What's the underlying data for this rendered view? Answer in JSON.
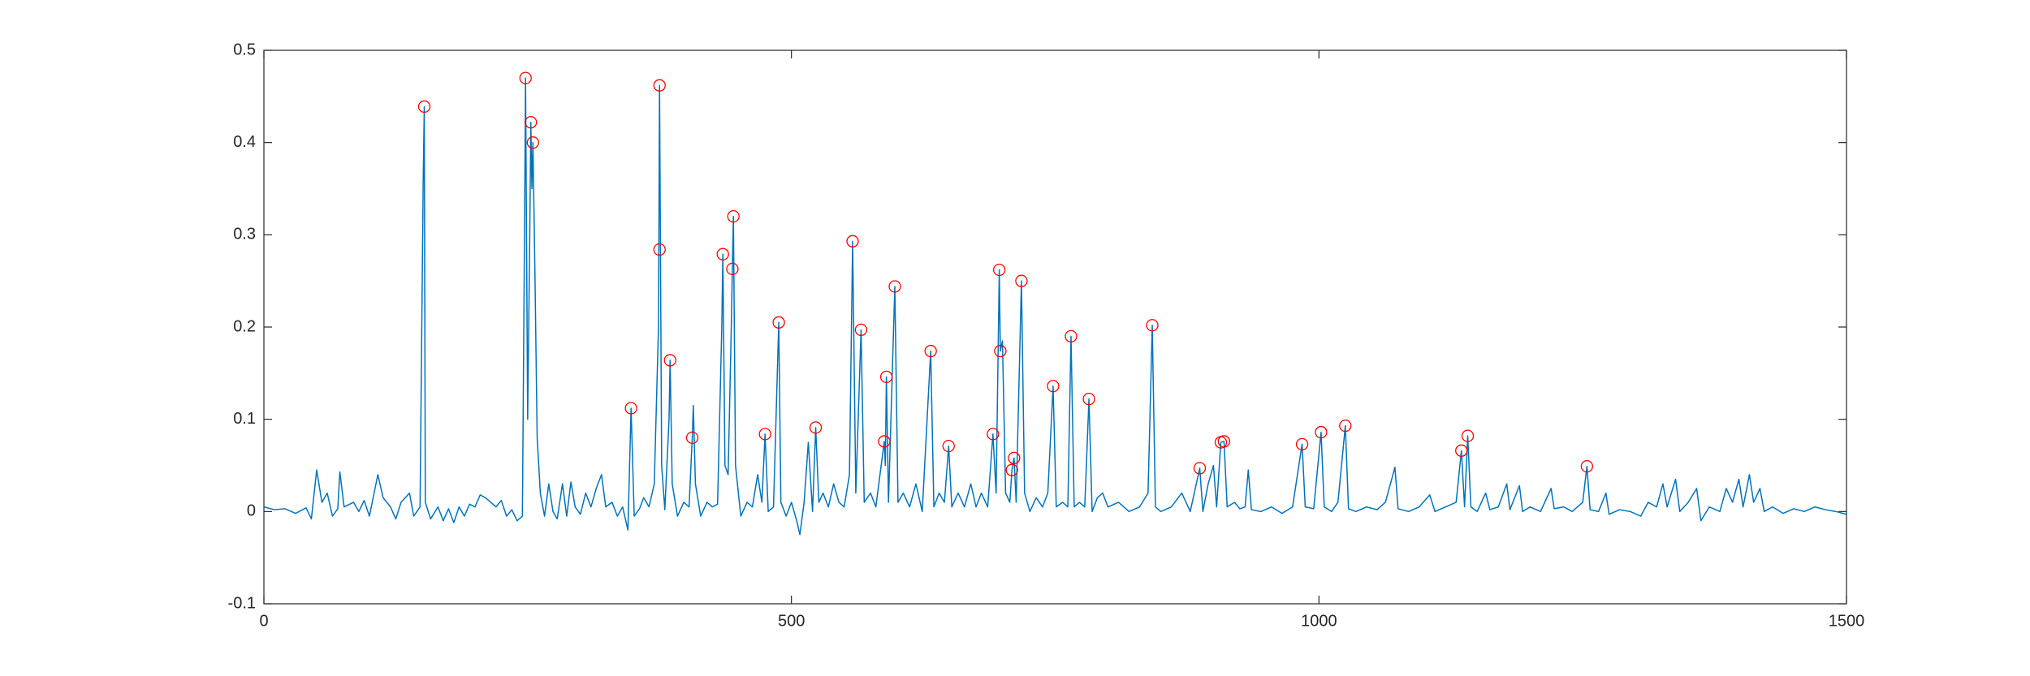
{
  "chart_data": {
    "type": "line",
    "xlim": [
      0,
      1500
    ],
    "xticks": [
      0,
      500,
      1000,
      1500
    ],
    "ylim": [
      -0.1,
      0.5
    ],
    "yticks": [
      -0.1,
      0,
      0.1,
      0.2,
      0.3,
      0.4,
      0.5
    ],
    "grid": false,
    "box": true,
    "series": [
      {
        "type": "line",
        "color": "#0072bd",
        "x": [
          0,
          10,
          20,
          30,
          40,
          45,
          50,
          55,
          60,
          65,
          70,
          72,
          76,
          85,
          90,
          95,
          100,
          108,
          113,
          120,
          125,
          130,
          138,
          142,
          148,
          151,
          152,
          153,
          158,
          165,
          170,
          175,
          180,
          185,
          190,
          195,
          200,
          205,
          210,
          215,
          220,
          225,
          230,
          235,
          240,
          245,
          247,
          248,
          250,
          252,
          253,
          254,
          255,
          257,
          259,
          262,
          266,
          270,
          274,
          278,
          283,
          287,
          291,
          295,
          300,
          305,
          310,
          315,
          320,
          324,
          330,
          335,
          340,
          345,
          348,
          351,
          356,
          360,
          365,
          370,
          374,
          375,
          377,
          380,
          384,
          385,
          387,
          392,
          398,
          403,
          406,
          407,
          409,
          414,
          420,
          425,
          430,
          434,
          435,
          437,
          440,
          443,
          444,
          445,
          447,
          452,
          458,
          463,
          468,
          472,
          475,
          478,
          483,
          488,
          490,
          495,
          500,
          505,
          508,
          512,
          516,
          520,
          523,
          526,
          530,
          535,
          540,
          545,
          550,
          555,
          558,
          561,
          566,
          569,
          575,
          580,
          588,
          589,
          590,
          592,
          598,
          601,
          606,
          612,
          618,
          624,
          632,
          635,
          640,
          645,
          649,
          652,
          658,
          664,
          670,
          675,
          680,
          686,
          691,
          694,
          697,
          698,
          700,
          703,
          707,
          709,
          711,
          713,
          718,
          721,
          726,
          732,
          738,
          743,
          748,
          751,
          757,
          762,
          765,
          768,
          773,
          778,
          782,
          785,
          790,
          795,
          800,
          810,
          820,
          830,
          838,
          842,
          845,
          850,
          860,
          870,
          878,
          887,
          890,
          895,
          900,
          903,
          907,
          910,
          913,
          920,
          925,
          930,
          933,
          936,
          945,
          955,
          965,
          975,
          984,
          987,
          995,
          1002,
          1005,
          1012,
          1018,
          1025,
          1028,
          1035,
          1045,
          1055,
          1063,
          1072,
          1075,
          1085,
          1095,
          1105,
          1110,
          1120,
          1130,
          1135,
          1138,
          1141,
          1144,
          1150,
          1158,
          1162,
          1170,
          1178,
          1181,
          1190,
          1193,
          1200,
          1210,
          1220,
          1223,
          1232,
          1240,
          1250,
          1254,
          1257,
          1265,
          1272,
          1275,
          1285,
          1295,
          1305,
          1312,
          1320,
          1326,
          1330,
          1338,
          1342,
          1350,
          1358,
          1362,
          1370,
          1380,
          1386,
          1392,
          1398,
          1402,
          1408,
          1412,
          1418,
          1422,
          1430,
          1440,
          1450,
          1460,
          1470,
          1480,
          1490,
          1500
        ],
        "values": [
          0.005,
          0.002,
          0.003,
          -0.002,
          0.004,
          -0.008,
          0.045,
          0.01,
          0.02,
          -0.005,
          0.003,
          0.043,
          0.005,
          0.01,
          0,
          0.012,
          -0.005,
          0.04,
          0.015,
          0.005,
          -0.008,
          0.01,
          0.02,
          -0.005,
          0.005,
          0.36,
          0.439,
          0.01,
          -0.008,
          0.005,
          -0.01,
          0.003,
          -0.012,
          0.005,
          -0.005,
          0.008,
          0.005,
          0.018,
          0.015,
          0.01,
          0.005,
          0.012,
          -0.005,
          0.002,
          -0.01,
          -0.005,
          0.3,
          0.47,
          0.1,
          0.3,
          0.422,
          0.35,
          0.4,
          0.25,
          0.08,
          0.02,
          -0.005,
          0.03,
          0,
          -0.008,
          0.03,
          -0.005,
          0.032,
          0.005,
          -0.003,
          0.02,
          0.005,
          0.025,
          0.04,
          0.005,
          0.01,
          -0.005,
          0.005,
          -0.02,
          0.112,
          -0.005,
          0.003,
          0.015,
          0.005,
          0.03,
          0.2,
          0.462,
          0.05,
          0.002,
          0.1,
          0.164,
          0.03,
          -0.005,
          0.01,
          0.005,
          0.08,
          0.115,
          0.03,
          -0.005,
          0.01,
          0.005,
          0.008,
          0.2,
          0.279,
          0.05,
          0.04,
          0.2,
          0.263,
          0.32,
          0.05,
          -0.005,
          0.01,
          0.005,
          0.04,
          0.01,
          0.084,
          0,
          0.005,
          0.205,
          0.01,
          -0.005,
          0.01,
          -0.01,
          -0.025,
          0.01,
          0.075,
          0,
          0.091,
          0.01,
          0.02,
          0.005,
          0.03,
          0.01,
          0.005,
          0.04,
          0.293,
          0.02,
          0.197,
          0.01,
          0.02,
          0.005,
          0.076,
          0.05,
          0.146,
          0.01,
          0.244,
          0.01,
          0.02,
          0.005,
          0.03,
          0,
          0.174,
          0.005,
          0.02,
          0.01,
          0.071,
          0.005,
          0.02,
          0.005,
          0.03,
          0.005,
          0.02,
          0.005,
          0.084,
          0.02,
          0.262,
          0.174,
          0.185,
          0.02,
          0.01,
          0.045,
          0.058,
          0.01,
          0.25,
          0.02,
          0,
          0.015,
          0.005,
          0.02,
          0.136,
          0.005,
          0.01,
          0.005,
          0.19,
          0.005,
          0.01,
          0.005,
          0.122,
          0,
          0.015,
          0.02,
          0.005,
          0.01,
          0,
          0.005,
          0.02,
          0.202,
          0.005,
          0,
          0.005,
          0.02,
          0,
          0.047,
          0,
          0.03,
          0.05,
          0.005,
          0.075,
          0.076,
          0.005,
          0.01,
          0.003,
          0.005,
          0.045,
          0.002,
          0,
          0.005,
          -0.002,
          0.005,
          0.073,
          0.005,
          0.003,
          0.086,
          0.005,
          0,
          0.01,
          0.093,
          0.003,
          0,
          0.005,
          0.002,
          0.01,
          0.048,
          0.003,
          0,
          0.005,
          0.018,
          0,
          0.005,
          0.01,
          0.066,
          0.005,
          0.082,
          0.005,
          0,
          0.02,
          0.002,
          0.005,
          0.03,
          0.002,
          0.028,
          0,
          0.005,
          0,
          0.025,
          0.003,
          0.005,
          0,
          0.01,
          0.049,
          0.002,
          0,
          0.02,
          -0.003,
          0.002,
          0,
          -0.005,
          0.01,
          0.005,
          0.03,
          0.005,
          0.035,
          0,
          0.01,
          0.025,
          -0.01,
          0.005,
          0,
          0.025,
          0.01,
          0.035,
          0.005,
          0.04,
          0.01,
          0.025,
          0,
          0.005,
          -0.002,
          0.003,
          0,
          0.005,
          0.002,
          0,
          -0.003
        ]
      },
      {
        "type": "scatter",
        "color": "#ff0000",
        "x": [
          152,
          248,
          253,
          255,
          348,
          375,
          375,
          385,
          406,
          435,
          444,
          445,
          475,
          488,
          523,
          558,
          566,
          588,
          590,
          598,
          632,
          649,
          691,
          697,
          698,
          709,
          711,
          718,
          748,
          765,
          782,
          842,
          887,
          907,
          910,
          984,
          1002,
          1025,
          1135,
          1141,
          1254
        ],
        "values": [
          0.439,
          0.47,
          0.422,
          0.4,
          0.112,
          0.462,
          0.284,
          0.164,
          0.08,
          0.279,
          0.263,
          0.32,
          0.084,
          0.205,
          0.091,
          0.293,
          0.197,
          0.076,
          0.146,
          0.244,
          0.174,
          0.071,
          0.084,
          0.262,
          0.174,
          0.045,
          0.058,
          0.25,
          0.136,
          0.19,
          0.122,
          0.202,
          0.047,
          0.075,
          0.076,
          0.073,
          0.086,
          0.093,
          0.066,
          0.082,
          0.049
        ]
      }
    ]
  }
}
